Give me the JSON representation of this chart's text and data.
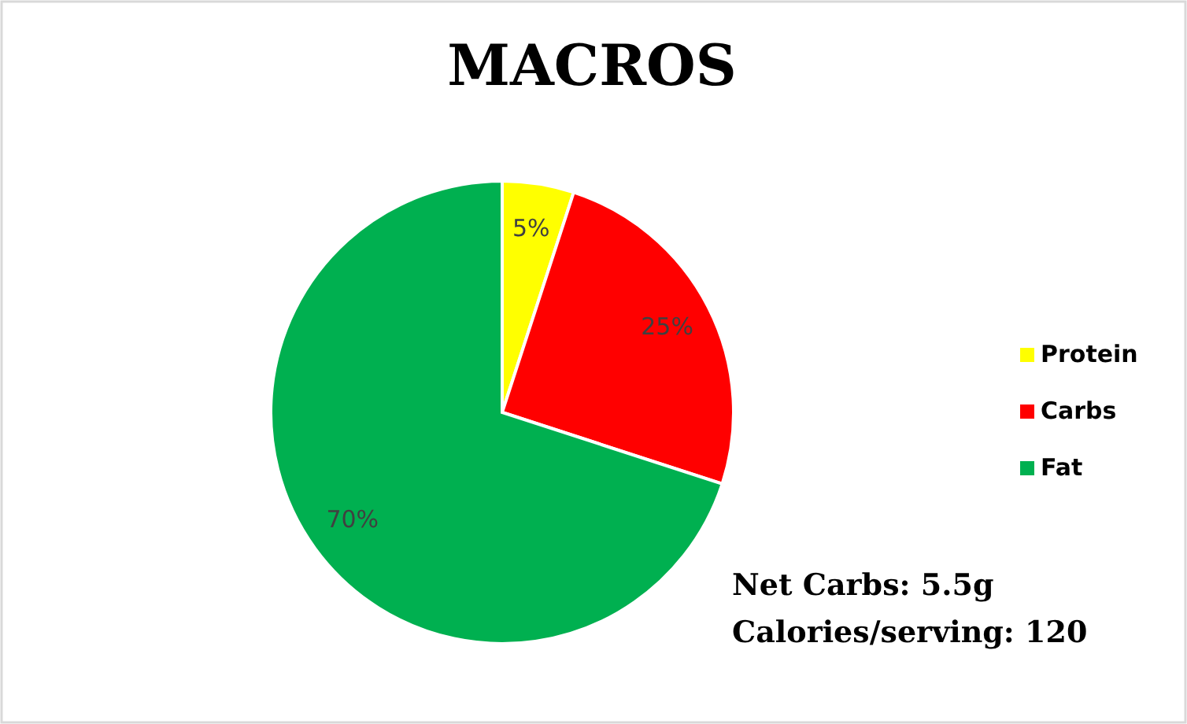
{
  "chart_data": {
    "type": "pie",
    "title": "MACROS",
    "categories": [
      "Protein",
      "Carbs",
      "Fat"
    ],
    "values": [
      5,
      25,
      70
    ],
    "colors": [
      "#ffff00",
      "#ff0000",
      "#00b050"
    ],
    "value_labels": [
      "5%",
      "25%",
      "70%"
    ],
    "legend": "right",
    "annotations": [
      "Net Carbs: 5.5g",
      "Calories/serving: 120"
    ]
  }
}
